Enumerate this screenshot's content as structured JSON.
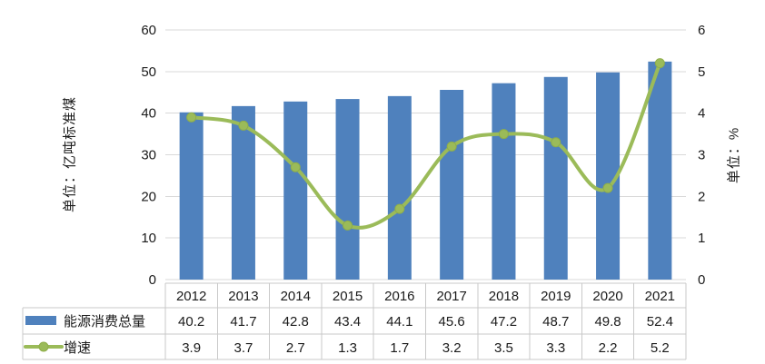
{
  "chart_data": {
    "type": "bar",
    "subtype": "combo-bar-line",
    "categories": [
      "2012",
      "2013",
      "2014",
      "2015",
      "2016",
      "2017",
      "2018",
      "2019",
      "2020",
      "2021"
    ],
    "series": [
      {
        "name": "能源消费总量",
        "type": "bar",
        "axis": "left",
        "color": "#4F81BD",
        "values": [
          40.2,
          41.7,
          42.8,
          43.4,
          44.1,
          45.6,
          47.2,
          48.7,
          49.8,
          52.4
        ]
      },
      {
        "name": "增速",
        "type": "line",
        "axis": "right",
        "color": "#9BBB59",
        "values": [
          3.9,
          3.7,
          2.7,
          1.3,
          1.7,
          3.2,
          3.5,
          3.3,
          2.2,
          5.2
        ]
      }
    ],
    "left_axis": {
      "title": "单位：亿吨标准煤",
      "min": 0,
      "max": 60,
      "step": 10,
      "ticks": [
        "0",
        "10",
        "20",
        "30",
        "40",
        "50",
        "60"
      ]
    },
    "right_axis": {
      "title": "单位：%",
      "min": 0,
      "max": 6,
      "step": 1,
      "ticks": [
        "0",
        "1",
        "2",
        "3",
        "4",
        "5",
        "6"
      ]
    },
    "grid": true,
    "legend_position": "bottom-data-table"
  },
  "colors": {
    "bar": "#4F81BD",
    "line": "#9BBB59",
    "marker_stroke": "#8FAE49",
    "grid": "#D9D9D9",
    "table_border": "#C9C9C9",
    "text": "#1a1a1a"
  }
}
